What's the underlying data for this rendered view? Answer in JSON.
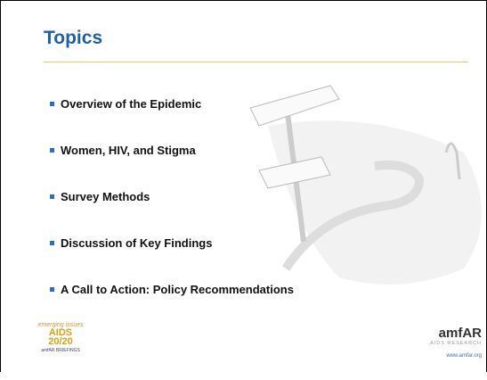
{
  "header": {
    "title": "Topics"
  },
  "bullets": [
    "Overview of the Epidemic",
    "Women, HIV, and Stigma",
    "Survey Methods",
    "Discussion of Key Findings",
    "A Call to Action: Policy Recommendations"
  ],
  "footer": {
    "left_logo": {
      "top": "emerging issues",
      "main": "AIDS",
      "sub": "20/20",
      "bottom": "amfAR BRIEFINGS"
    },
    "right_logo": {
      "name": "amfAR",
      "tagline": "AIDS RESEARCH",
      "url": "www.amfar.org"
    }
  }
}
